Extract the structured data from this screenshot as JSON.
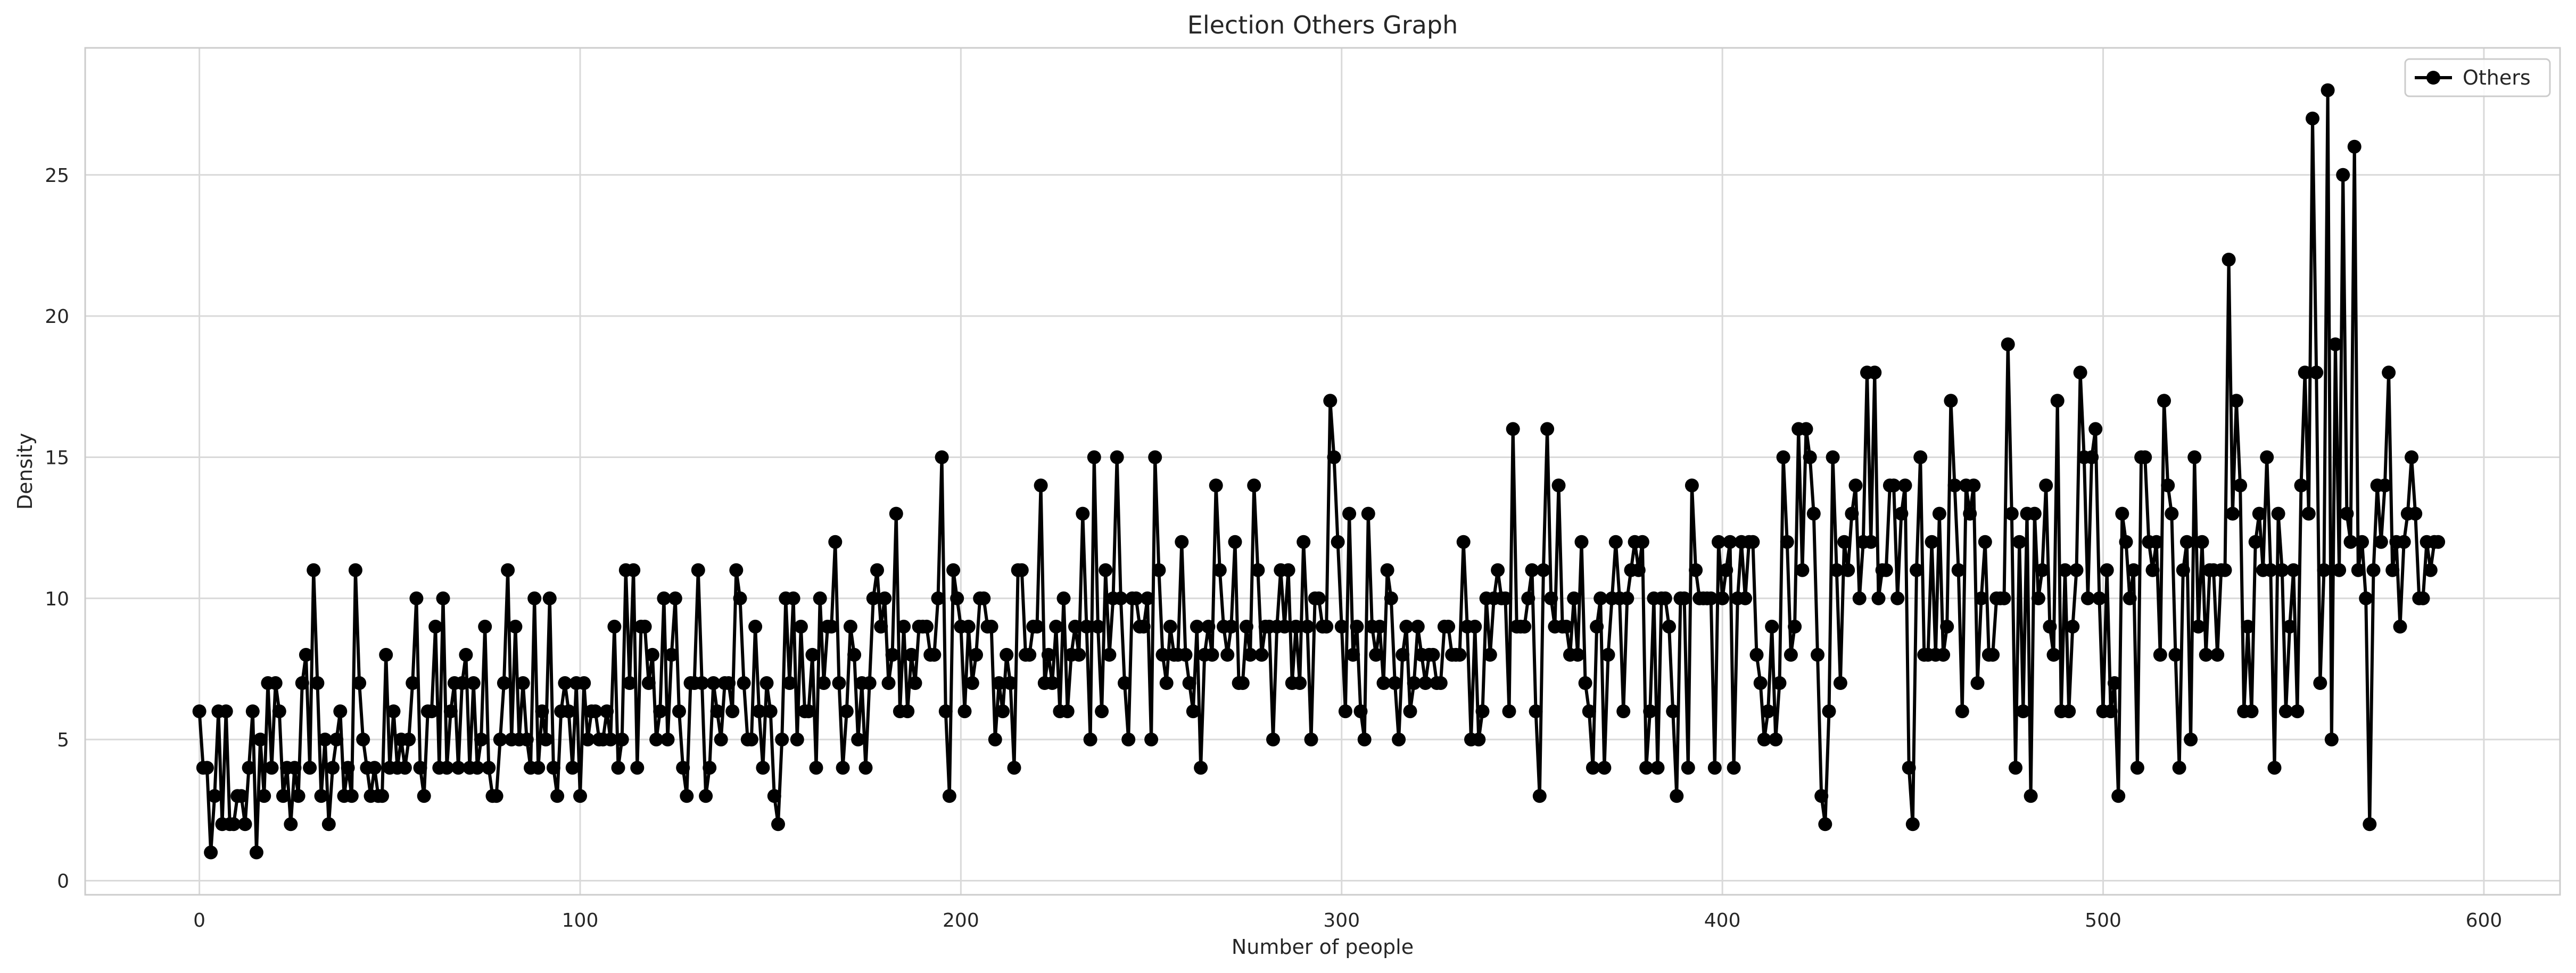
{
  "chart_data": {
    "type": "line",
    "title": "Election Others Graph",
    "xlabel": "Number of people",
    "ylabel": "Density",
    "xlim": [
      -30,
      620
    ],
    "ylim": [
      -0.5,
      29.5
    ],
    "xticks": [
      0,
      100,
      200,
      300,
      400,
      500,
      600
    ],
    "yticks": [
      0,
      5,
      10,
      15,
      20,
      25
    ],
    "grid": true,
    "legend_position": "top-right",
    "series": [
      {
        "name": "Others",
        "color": "#000000",
        "marker": "circle",
        "values": [
          6,
          4,
          4,
          1,
          3,
          6,
          2,
          6,
          2,
          2,
          3,
          3,
          2,
          4,
          6,
          1,
          5,
          3,
          7,
          4,
          7,
          6,
          3,
          4,
          2,
          4,
          3,
          7,
          8,
          4,
          11,
          7,
          3,
          5,
          2,
          4,
          5,
          6,
          3,
          4,
          3,
          11,
          7,
          5,
          4,
          3,
          4,
          3,
          3,
          8,
          4,
          6,
          4,
          5,
          4,
          5,
          7,
          10,
          4,
          3,
          6,
          6,
          9,
          4,
          10,
          4,
          6,
          7,
          4,
          7,
          8,
          4,
          7,
          4,
          5,
          9,
          4,
          3,
          3,
          5,
          7,
          11,
          5,
          9,
          5,
          7,
          5,
          4,
          10,
          4,
          6,
          5,
          10,
          4,
          3,
          6,
          7,
          6,
          4,
          7,
          3,
          7,
          5,
          6,
          6,
          5,
          5,
          6,
          5,
          9,
          4,
          5,
          11,
          7,
          11,
          4,
          9,
          9,
          7,
          8,
          5,
          6,
          10,
          5,
          8,
          10,
          6,
          4,
          3,
          7,
          7,
          11,
          7,
          3,
          4,
          7,
          6,
          5,
          7,
          7,
          6,
          11,
          10,
          7,
          5,
          5,
          9,
          6,
          4,
          7,
          6,
          3,
          2,
          5,
          10,
          7,
          10,
          5,
          9,
          6,
          6,
          8,
          4,
          10,
          7,
          9,
          9,
          12,
          7,
          4,
          6,
          9,
          8,
          5,
          7,
          4,
          7,
          10,
          11,
          9,
          10,
          7,
          8,
          13,
          6,
          9,
          6,
          8,
          7,
          9,
          9,
          9,
          8,
          8,
          10,
          15,
          6,
          3,
          11,
          10,
          9,
          6,
          9,
          7,
          8,
          10,
          10,
          9,
          9,
          5,
          7,
          6,
          8,
          7,
          4,
          11,
          11,
          8,
          8,
          9,
          9,
          14,
          7,
          8,
          7,
          9,
          6,
          10,
          6,
          8,
          9,
          8,
          13,
          9,
          5,
          15,
          9,
          6,
          11,
          8,
          10,
          15,
          10,
          7,
          5,
          10,
          10,
          9,
          9,
          10,
          5,
          15,
          11,
          8,
          7,
          9,
          8,
          8,
          12,
          8,
          7,
          6,
          9,
          4,
          8,
          9,
          8,
          14,
          11,
          9,
          8,
          9,
          12,
          7,
          7,
          9,
          8,
          14,
          11,
          8,
          9,
          9,
          5,
          9,
          11,
          9,
          11,
          7,
          9,
          7,
          12,
          9,
          5,
          10,
          10,
          9,
          9,
          17,
          15,
          12,
          9,
          6,
          13,
          8,
          9,
          6,
          5,
          13,
          9,
          8,
          9,
          7,
          11,
          10,
          7,
          5,
          8,
          9,
          6,
          7,
          9,
          8,
          7,
          8,
          8,
          7,
          7,
          9,
          9,
          8,
          8,
          8,
          12,
          9,
          5,
          9,
          5,
          6,
          10,
          8,
          10,
          11,
          10,
          10,
          6,
          16,
          9,
          9,
          9,
          10,
          11,
          6,
          3,
          11,
          16,
          10,
          9,
          14,
          9,
          9,
          8,
          10,
          8,
          12,
          7,
          6,
          4,
          9,
          10,
          4,
          8,
          10,
          12,
          10,
          6,
          10,
          11,
          12,
          11,
          12,
          4,
          6,
          10,
          4,
          10,
          10,
          9,
          6,
          3,
          10,
          10,
          4,
          14,
          11,
          10,
          10,
          10,
          10,
          4,
          12,
          10,
          11,
          12,
          4,
          10,
          12,
          10,
          12,
          12,
          8,
          7,
          5,
          6,
          9,
          5,
          7,
          15,
          12,
          8,
          9,
          16,
          11,
          16,
          15,
          13,
          8,
          3,
          2,
          6,
          15,
          11,
          7,
          12,
          11,
          13,
          14,
          10,
          12,
          18,
          12,
          18,
          10,
          11,
          11,
          14,
          14,
          10,
          13,
          14,
          4,
          2,
          11,
          15,
          8,
          8,
          12,
          8,
          13,
          8,
          9,
          17,
          14,
          11,
          6,
          14,
          13,
          14,
          7,
          10,
          12,
          8,
          8,
          10,
          10,
          10,
          19,
          13,
          4,
          12,
          6,
          13,
          3,
          13,
          10,
          11,
          14,
          9,
          8,
          17,
          6,
          11,
          6,
          9,
          11,
          18,
          15,
          10,
          15,
          16,
          10,
          6,
          11,
          6,
          7,
          3,
          13,
          12,
          10,
          11,
          4,
          15,
          15,
          12,
          11,
          12,
          8,
          17,
          14,
          13,
          8,
          4,
          11,
          12,
          5,
          15,
          9,
          12,
          8,
          11,
          11,
          8,
          11,
          11,
          22,
          13,
          17,
          14,
          6,
          9,
          6,
          12,
          13,
          11,
          15,
          11,
          4,
          13,
          11,
          6,
          9,
          11,
          6,
          14,
          18,
          13,
          27,
          18,
          7,
          11,
          28,
          5,
          19,
          11,
          25,
          13,
          12,
          26,
          11,
          12,
          10,
          2,
          11,
          14,
          12,
          14,
          18,
          11,
          12,
          9,
          12,
          13,
          15,
          13,
          10,
          10,
          12,
          11,
          12,
          12
        ]
      }
    ]
  }
}
